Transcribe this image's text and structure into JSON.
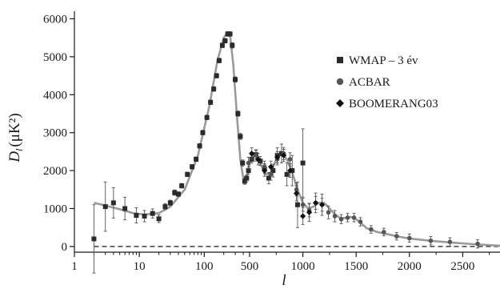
{
  "chart_data": {
    "type": "scatter",
    "xlabel": "l",
    "ylabel_main": "D",
    "ylabel_sub": "l",
    "ylabel_unit": "(μK²)",
    "x_scale": "piecewise: log for l < 500, linear for l ≥ 500",
    "xlim": [
      1,
      2850
    ],
    "ylim": [
      -150,
      6200
    ],
    "x_ticks": [
      1,
      10,
      100,
      500,
      1000,
      1500,
      2000,
      2500
    ],
    "x_tick_labels": [
      "1",
      "10",
      "100",
      "500",
      "1000",
      "1500",
      "2000",
      "2500"
    ],
    "y_ticks": [
      0,
      1000,
      2000,
      3000,
      4000,
      5000,
      6000
    ],
    "y_tick_labels": [
      "0",
      "1000",
      "2000",
      "3000",
      "4000",
      "5000",
      "6000"
    ],
    "grid": false,
    "legend_position": "right",
    "zero_line": "dashed",
    "model_curve": {
      "color": "#9a9a9a",
      "x": [
        2,
        3,
        5,
        8,
        12,
        20,
        30,
        50,
        80,
        120,
        160,
        200,
        230,
        250,
        280,
        320,
        360,
        400,
        430,
        470,
        510,
        540,
        570,
        600,
        650,
        700,
        750,
        800,
        850,
        900,
        950,
        1000,
        1050,
        1100,
        1150,
        1200,
        1250,
        1300,
        1350,
        1400,
        1450,
        1500,
        1550,
        1600,
        1700,
        1800,
        1900,
        2000,
        2200,
        2400,
        2600,
        2850
      ],
      "y": [
        1150,
        1080,
        980,
        880,
        840,
        880,
        1050,
        1500,
        2400,
        3700,
        4900,
        5500,
        5650,
        5550,
        4800,
        3400,
        2300,
        1800,
        1750,
        1950,
        2300,
        2450,
        2400,
        2200,
        1900,
        1950,
        2300,
        2450,
        2300,
        1950,
        1500,
        1150,
        1000,
        1050,
        1150,
        1150,
        1000,
        850,
        750,
        750,
        780,
        720,
        600,
        480,
        380,
        320,
        260,
        210,
        150,
        100,
        60,
        20
      ]
    },
    "series": [
      {
        "name": "WMAP – 3 év",
        "marker": "square",
        "color": "#2b2b2b",
        "points": [
          [
            2,
            200,
            900
          ],
          [
            3,
            1050,
            650
          ],
          [
            4,
            1150,
            400
          ],
          [
            6,
            1000,
            300
          ],
          [
            9,
            820,
            200
          ],
          [
            12,
            800,
            150
          ],
          [
            16,
            870,
            120
          ],
          [
            20,
            730,
            100
          ],
          [
            25,
            1050,
            80
          ],
          [
            30,
            1150,
            70
          ],
          [
            35,
            1420,
            70
          ],
          [
            40,
            1380,
            60
          ],
          [
            45,
            1600,
            60
          ],
          [
            55,
            1900,
            60
          ],
          [
            65,
            2100,
            60
          ],
          [
            75,
            2300,
            60
          ],
          [
            85,
            2650,
            60
          ],
          [
            95,
            3000,
            60
          ],
          [
            110,
            3400,
            60
          ],
          [
            125,
            3800,
            60
          ],
          [
            140,
            4150,
            60
          ],
          [
            155,
            4500,
            60
          ],
          [
            170,
            4900,
            60
          ],
          [
            190,
            5300,
            60
          ],
          [
            210,
            5420,
            60
          ],
          [
            230,
            5600,
            60
          ],
          [
            250,
            5600,
            60
          ],
          [
            270,
            5300,
            70
          ],
          [
            300,
            4400,
            70
          ],
          [
            330,
            3500,
            70
          ],
          [
            360,
            2900,
            80
          ],
          [
            390,
            2200,
            80
          ],
          [
            420,
            1720,
            80
          ],
          [
            450,
            1800,
            90
          ],
          [
            480,
            2000,
            100
          ],
          [
            520,
            2300,
            100
          ],
          [
            560,
            2420,
            110
          ],
          [
            600,
            2250,
            120
          ],
          [
            640,
            2050,
            130
          ],
          [
            680,
            1800,
            150
          ],
          [
            720,
            2000,
            170
          ],
          [
            760,
            2400,
            200
          ],
          [
            800,
            2450,
            250
          ],
          [
            850,
            1900,
            300
          ],
          [
            900,
            2000,
            400
          ],
          [
            950,
            1100,
            600
          ],
          [
            1000,
            2200,
            900
          ]
        ]
      },
      {
        "name": "ACBAR",
        "marker": "circle",
        "color": "#555555",
        "points": [
          [
            480,
            2200,
            150
          ],
          [
            560,
            2400,
            150
          ],
          [
            640,
            2100,
            150
          ],
          [
            700,
            1900,
            150
          ],
          [
            760,
            2300,
            150
          ],
          [
            820,
            2450,
            160
          ],
          [
            880,
            2300,
            170
          ],
          [
            940,
            1500,
            170
          ],
          [
            1000,
            1100,
            170
          ],
          [
            1060,
            950,
            170
          ],
          [
            1120,
            1150,
            170
          ],
          [
            1180,
            1100,
            170
          ],
          [
            1240,
            900,
            170
          ],
          [
            1300,
            800,
            150
          ],
          [
            1360,
            720,
            120
          ],
          [
            1420,
            760,
            110
          ],
          [
            1480,
            760,
            110
          ],
          [
            1540,
            650,
            110
          ],
          [
            1640,
            450,
            100
          ],
          [
            1760,
            380,
            100
          ],
          [
            1880,
            270,
            100
          ],
          [
            2000,
            220,
            110
          ],
          [
            2200,
            150,
            110
          ],
          [
            2380,
            120,
            110
          ],
          [
            2640,
            70,
            110
          ]
        ]
      },
      {
        "name": "BOOMERANG03",
        "marker": "diamond",
        "color": "#111111",
        "points": [
          [
            520,
            2450,
            150
          ],
          [
            580,
            2300,
            150
          ],
          [
            640,
            2000,
            150
          ],
          [
            700,
            2100,
            150
          ],
          [
            760,
            2350,
            150
          ],
          [
            820,
            2400,
            160
          ],
          [
            880,
            2000,
            180
          ],
          [
            940,
            1400,
            200
          ],
          [
            1000,
            800,
            220
          ],
          [
            1060,
            900,
            240
          ],
          [
            1120,
            1150,
            260
          ],
          [
            1180,
            1100,
            280
          ]
        ]
      }
    ]
  }
}
